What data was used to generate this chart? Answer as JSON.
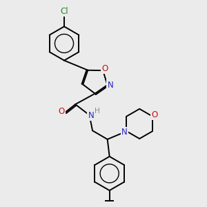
{
  "background_color": "#ebebeb",
  "figsize": [
    3.0,
    3.0
  ],
  "dpi": 100,
  "atom_colors": {
    "C": "#000000",
    "N": "#2222cc",
    "O": "#cc1111",
    "H": "#888888",
    "Cl": "#228B22"
  },
  "bond_color": "#000000",
  "bond_width": 1.4,
  "font_size_atom": 8.5
}
